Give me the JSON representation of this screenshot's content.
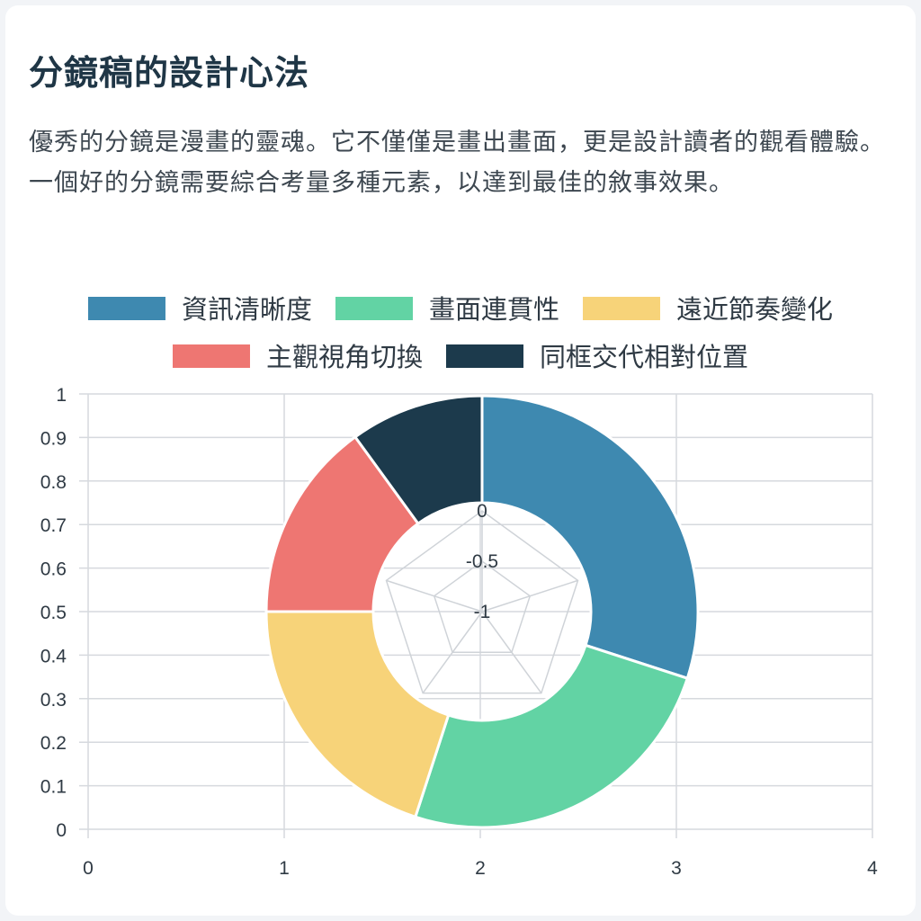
{
  "heading": "分鏡稿的設計心法",
  "description": "優秀的分鏡是漫畫的靈魂。它不僅僅是畫出畫面，更是設計讀者的觀看體驗。一個好的分鏡需要綜合考量多種元素，以達到最佳的敘事效果。",
  "chart_data": {
    "type": "pie",
    "variant": "doughnut",
    "categories": [
      "資訊清晰度",
      "畫面連貫性",
      "遠近節奏變化",
      "主觀視角切換",
      "同框交代相對位置"
    ],
    "values": [
      30,
      25,
      20,
      15,
      10
    ],
    "colors": [
      "#3e89b0",
      "#62d3a4",
      "#f7d379",
      "#ee7672",
      "#1c3a4c"
    ],
    "legend_position": "top",
    "grid": true,
    "x_axis": {
      "ticks": [
        "0",
        "1",
        "2",
        "3",
        "4"
      ],
      "range": [
        0,
        4
      ]
    },
    "y_axis": {
      "ticks": [
        "0",
        "0.1",
        "0.2",
        "0.3",
        "0.4",
        "0.5",
        "0.6",
        "0.7",
        "0.8",
        "0.9",
        "1"
      ],
      "range": [
        0,
        1
      ]
    },
    "radial_axis": {
      "ticks": [
        "0",
        "-0.5",
        "-1"
      ],
      "range": [
        -1,
        0
      ]
    }
  }
}
